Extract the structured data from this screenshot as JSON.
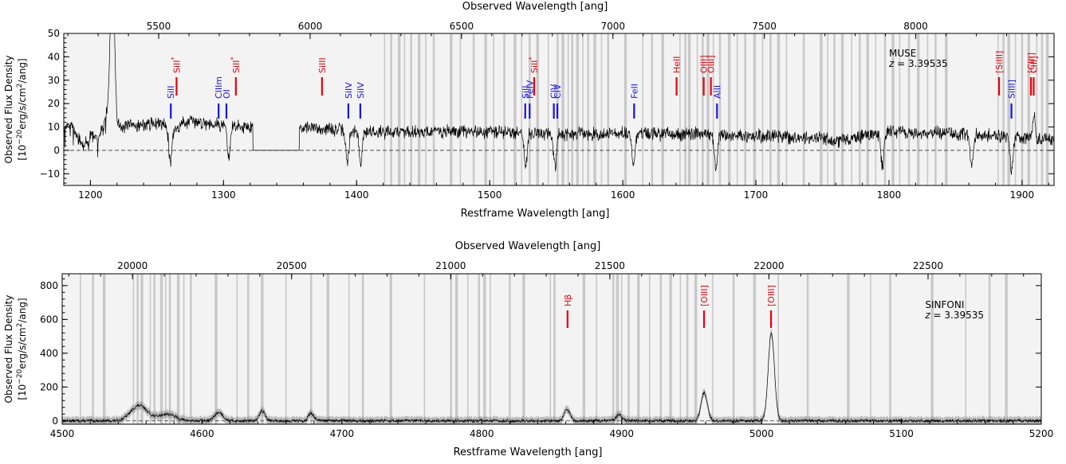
{
  "chart_data": [
    {
      "type": "line",
      "name": "MUSE",
      "annotation": "MUSE",
      "redshift_label": "z = 3.39535",
      "top_axis_label": "Observed Wavelength [ang]",
      "xlabel": "Restframe Wavelength [ang]",
      "ylabel_line1": "Observed Flux Density",
      "ylabel_line2": "[10",
      "ylabel_exp": "−20",
      "ylabel_unit": "erg/s/cm",
      "ylabel_unit_exp": "2",
      "ylabel_tail": "/ang]",
      "xlim": [
        1180,
        1924
      ],
      "ylim": [
        -15,
        50
      ],
      "redshift": 3.39535,
      "x_ticks": [
        1200,
        1300,
        1400,
        1500,
        1600,
        1700,
        1800,
        1900
      ],
      "x_tick_labels": [
        "1200",
        "1300",
        "1400",
        "1500",
        "1600",
        "1700",
        "1800",
        "1900"
      ],
      "y_ticks": [
        -10,
        0,
        10,
        20,
        30,
        40,
        50
      ],
      "y_tick_labels": [
        "−10",
        "0",
        "10",
        "20",
        "30",
        "40",
        "50"
      ],
      "top_ticks": [
        5500,
        6000,
        6500,
        7000,
        7500,
        8000
      ],
      "top_tick_labels": [
        "5500",
        "6000",
        "6500",
        "7000",
        "7500",
        "8000"
      ],
      "gap": [
        1322,
        1357
      ],
      "spectrum_knots": [
        [
          1180,
          8
        ],
        [
          1185,
          12
        ],
        [
          1190,
          5
        ],
        [
          1195,
          2
        ],
        [
          1200,
          6
        ],
        [
          1205,
          5
        ],
        [
          1210,
          10
        ],
        [
          1215,
          25
        ],
        [
          1216,
          55
        ],
        [
          1218,
          45
        ],
        [
          1220,
          12
        ],
        [
          1225,
          10
        ],
        [
          1240,
          11
        ],
        [
          1255,
          12
        ],
        [
          1262,
          8
        ],
        [
          1270,
          12
        ],
        [
          1285,
          12
        ],
        [
          1300,
          11
        ],
        [
          1320,
          10
        ],
        [
          1360,
          10
        ],
        [
          1380,
          9
        ],
        [
          1400,
          8
        ],
        [
          1450,
          8
        ],
        [
          1500,
          8
        ],
        [
          1550,
          7
        ],
        [
          1600,
          7
        ],
        [
          1650,
          7
        ],
        [
          1700,
          6
        ],
        [
          1750,
          5
        ],
        [
          1760,
          4
        ],
        [
          1780,
          6
        ],
        [
          1800,
          8
        ],
        [
          1850,
          7
        ],
        [
          1880,
          6
        ],
        [
          1900,
          5
        ],
        [
          1924,
          5
        ]
      ],
      "absorption_dips": [
        1260,
        1304,
        1334,
        1393,
        1403,
        1527,
        1549,
        1608,
        1670,
        1795,
        1862,
        1892
      ],
      "emission_spikes": [
        1216,
        1909
      ],
      "noise_amplitude": 2.2,
      "noise_seed": 7,
      "sky_lines": [
        1421,
        1426,
        1432,
        1436,
        1441,
        1447,
        1452,
        1458,
        1471,
        1478,
        1488,
        1497,
        1503,
        1511,
        1519,
        1524,
        1530,
        1536,
        1544,
        1551,
        1555,
        1559,
        1562,
        1566,
        1570,
        1574,
        1579,
        1584,
        1589,
        1602,
        1615,
        1622,
        1630,
        1643,
        1647,
        1650,
        1656,
        1660,
        1664,
        1668,
        1673,
        1680,
        1686,
        1692,
        1699,
        1705,
        1711,
        1717,
        1723,
        1736,
        1749,
        1754,
        1759,
        1765,
        1772,
        1778,
        1784,
        1790,
        1797,
        1803,
        1808,
        1815,
        1822,
        1829,
        1835,
        1843,
        1882,
        1886,
        1890,
        1895,
        1900,
        1905,
        1911,
        1915,
        1919
      ],
      "lines": [
        {
          "label": "SiII",
          "x": 1260.4,
          "color": "blue",
          "superscript": ""
        },
        {
          "label": "SiII",
          "x": 1264.7,
          "color": "red",
          "superscript": "*"
        },
        {
          "label": "CIIIm",
          "x": 1296.3,
          "color": "blue",
          "superscript": ""
        },
        {
          "label": "OI",
          "x": 1302.2,
          "color": "blue",
          "superscript": ""
        },
        {
          "label": "SiII",
          "x": 1309.3,
          "color": "red",
          "superscript": "*"
        },
        {
          "label": "SiIII",
          "x": 1374.0,
          "color": "red",
          "superscript": ""
        },
        {
          "label": "SiIV",
          "x": 1393.8,
          "color": "blue",
          "superscript": ""
        },
        {
          "label": "SiIV",
          "x": 1402.8,
          "color": "blue",
          "superscript": ""
        },
        {
          "label": "SiII",
          "x": 1526.7,
          "color": "blue",
          "superscript": ""
        },
        {
          "label": "FeIV",
          "x": 1530.0,
          "color": "blue",
          "superscript": ""
        },
        {
          "label": "SiII",
          "x": 1533.4,
          "color": "red",
          "superscript": "*"
        },
        {
          "label": "CIV",
          "x": 1548.2,
          "color": "blue",
          "superscript": ""
        },
        {
          "label": "CIV",
          "x": 1550.8,
          "color": "blue",
          "superscript": ""
        },
        {
          "label": "FeII",
          "x": 1608.5,
          "color": "blue",
          "superscript": ""
        },
        {
          "label": "HeII",
          "x": 1640.4,
          "color": "red",
          "superscript": ""
        },
        {
          "label": "OIII]",
          "x": 1660.8,
          "color": "red",
          "superscript": ""
        },
        {
          "label": "OIII]",
          "x": 1666.2,
          "color": "red",
          "superscript": ""
        },
        {
          "label": "AlII",
          "x": 1670.8,
          "color": "blue",
          "superscript": ""
        },
        {
          "label": "[SiIII]",
          "x": 1882.7,
          "color": "red",
          "superscript": ""
        },
        {
          "label": "SiIII]",
          "x": 1892.0,
          "color": "blue",
          "superscript": ""
        },
        {
          "label": "[CIII]",
          "x": 1906.7,
          "color": "red",
          "superscript": ""
        },
        {
          "label": "CIII]",
          "x": 1908.7,
          "color": "red",
          "superscript": ""
        }
      ]
    },
    {
      "type": "line",
      "name": "SINFONI",
      "annotation": "SINFONI",
      "redshift_label": "z = 3.39535",
      "top_axis_label": "Observed Wavelength [ang]",
      "xlabel": "Restframe Wavelength [ang]",
      "ylabel_line1": "Observed Flux Density",
      "ylabel_line2": "[10",
      "ylabel_exp": "−20",
      "ylabel_unit": "erg/s/cm",
      "ylabel_unit_exp": "2",
      "ylabel_tail": "/ang]",
      "xlim": [
        4500,
        5200
      ],
      "ylim": [
        -20,
        870
      ],
      "redshift": 3.39535,
      "x_ticks": [
        4500,
        4600,
        4700,
        4800,
        4900,
        5000,
        5100,
        5200
      ],
      "x_tick_labels": [
        "4500",
        "4600",
        "4700",
        "4800",
        "4900",
        "5000",
        "5100",
        "5200"
      ],
      "y_ticks": [
        0,
        200,
        400,
        600,
        800
      ],
      "y_tick_labels": [
        "0",
        "200",
        "400",
        "600",
        "800"
      ],
      "top_ticks": [
        20000,
        20500,
        21000,
        21500,
        22000,
        22500
      ],
      "top_tick_labels": [
        "20000",
        "20500",
        "21000",
        "21500",
        "22000",
        "22500"
      ],
      "peaks": [
        {
          "x": 4555,
          "height": 90,
          "width": 6
        },
        {
          "x": 4575,
          "height": 40,
          "width": 6
        },
        {
          "x": 4612,
          "height": 50,
          "width": 3
        },
        {
          "x": 4643,
          "height": 60,
          "width": 2
        },
        {
          "x": 4678,
          "height": 45,
          "width": 2
        },
        {
          "x": 4861,
          "height": 70,
          "width": 2
        },
        {
          "x": 4898,
          "height": 35,
          "width": 2
        },
        {
          "x": 4959,
          "height": 170,
          "width": 2.2
        },
        {
          "x": 5007,
          "height": 520,
          "width": 2.2
        }
      ],
      "noise_amplitude": 9,
      "noise_seed": 13,
      "sky_lines": [
        4513,
        4522,
        4530,
        4551,
        4554,
        4557,
        4563,
        4566,
        4571,
        4574,
        4577,
        4583,
        4587,
        4592,
        4610,
        4625,
        4633,
        4643,
        4660,
        4678,
        4690,
        4705,
        4715,
        4735,
        4759,
        4778,
        4782,
        4790,
        4798,
        4802,
        4806,
        4820,
        4830,
        4849,
        4852,
        4873,
        4882,
        4894,
        4897,
        4900,
        4905,
        4912,
        4920,
        4928,
        4935,
        4942,
        4947,
        4953,
        4965,
        4980,
        4995,
        5012,
        5033,
        5062,
        5078,
        5092,
        5122,
        5146,
        5163,
        5175
      ],
      "lines": [
        {
          "label": "Hβ",
          "x": 4861.3,
          "color": "red",
          "superscript": ""
        },
        {
          "label": "[OIII]",
          "x": 4958.9,
          "color": "red",
          "superscript": ""
        },
        {
          "label": "[OIII]",
          "x": 5006.8,
          "color": "red",
          "superscript": ""
        }
      ]
    }
  ]
}
